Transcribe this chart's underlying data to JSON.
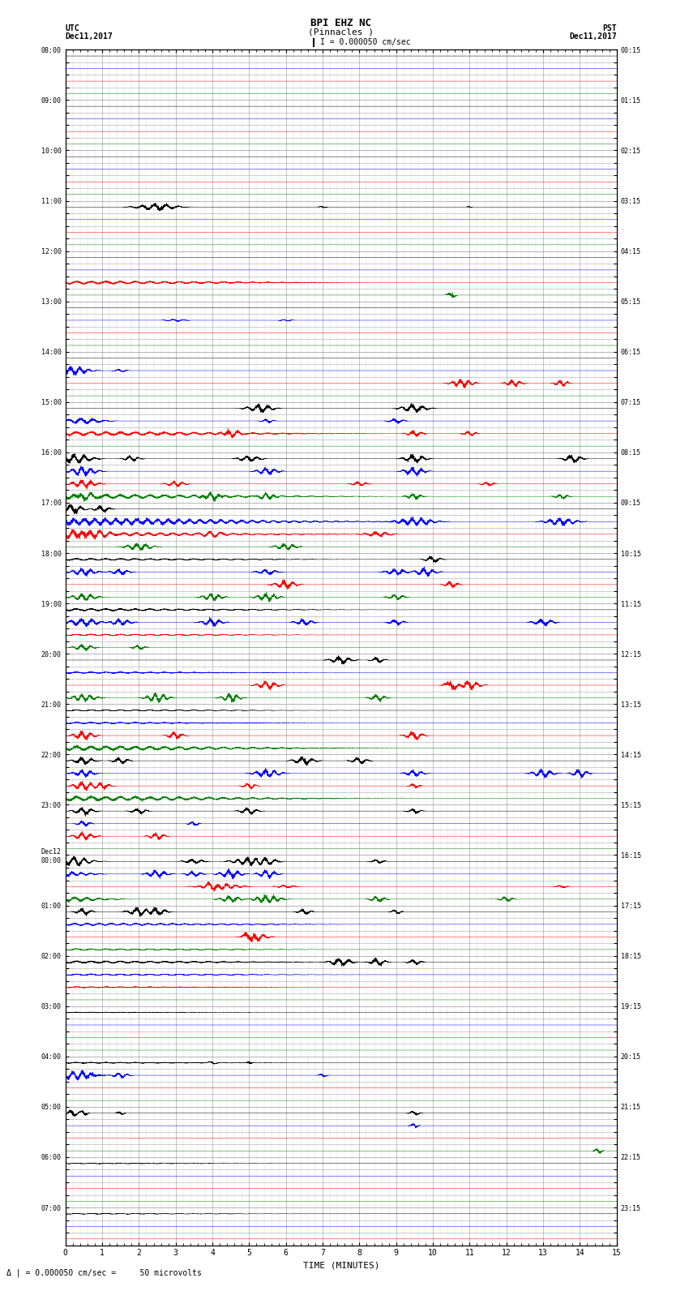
{
  "title_line1": "BPI EHZ NC",
  "title_line2": "(Pinnacles )",
  "title_line3": "I = 0.000050 cm/sec",
  "label_left_top1": "UTC",
  "label_left_top2": "Dec11,2017",
  "label_right_top1": "PST",
  "label_right_top2": "Dec11,2017",
  "xlabel": "TIME (MINUTES)",
  "bottom_note": "Δ | = 0.000050 cm/sec =     50 microvolts",
  "utc_times": [
    "08:00",
    "",
    "",
    "",
    "09:00",
    "",
    "",
    "",
    "10:00",
    "",
    "",
    "",
    "11:00",
    "",
    "",
    "",
    "12:00",
    "",
    "",
    "",
    "13:00",
    "",
    "",
    "",
    "14:00",
    "",
    "",
    "",
    "15:00",
    "",
    "",
    "",
    "16:00",
    "",
    "",
    "",
    "17:00",
    "",
    "",
    "",
    "18:00",
    "",
    "",
    "",
    "19:00",
    "",
    "",
    "",
    "20:00",
    "",
    "",
    "",
    "21:00",
    "",
    "",
    "",
    "22:00",
    "",
    "",
    "",
    "23:00",
    "",
    "",
    "",
    "Dec12\n00:00",
    "",
    "",
    "",
    "01:00",
    "",
    "",
    "",
    "02:00",
    "",
    "",
    "",
    "03:00",
    "",
    "",
    "",
    "04:00",
    "",
    "",
    "",
    "05:00",
    "",
    "",
    "",
    "06:00",
    "",
    "",
    "",
    "07:00",
    "",
    ""
  ],
  "pst_times": [
    "00:15",
    "",
    "",
    "",
    "01:15",
    "",
    "",
    "",
    "02:15",
    "",
    "",
    "",
    "03:15",
    "",
    "",
    "",
    "04:15",
    "",
    "",
    "",
    "05:15",
    "",
    "",
    "",
    "06:15",
    "",
    "",
    "",
    "07:15",
    "",
    "",
    "",
    "08:15",
    "",
    "",
    "",
    "09:15",
    "",
    "",
    "",
    "10:15",
    "",
    "",
    "",
    "11:15",
    "",
    "",
    "",
    "12:15",
    "",
    "",
    "",
    "13:15",
    "",
    "",
    "",
    "14:15",
    "",
    "",
    "",
    "15:15",
    "",
    "",
    "",
    "16:15",
    "",
    "",
    "",
    "17:15",
    "",
    "",
    "",
    "18:15",
    "",
    "",
    "",
    "19:15",
    "",
    "",
    "",
    "20:15",
    "",
    "",
    "",
    "21:15",
    "",
    "",
    "",
    "22:15",
    "",
    "",
    "",
    "23:15",
    "",
    ""
  ],
  "n_rows": 95,
  "n_minutes": 15,
  "colors_cycle": [
    "black",
    "blue",
    "red",
    "green"
  ],
  "bg_color": "white",
  "grid_color": "#aaaaaa",
  "noise_amplitude": 0.003,
  "tick_color": "black"
}
